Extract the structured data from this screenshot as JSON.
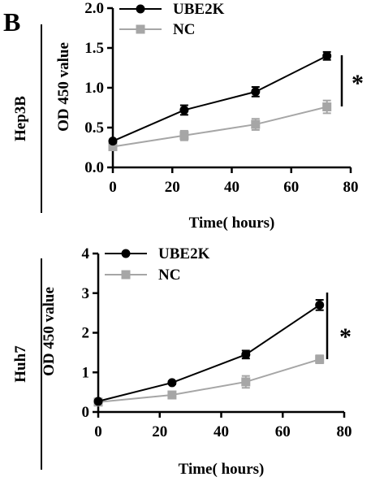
{
  "panel_label": "B",
  "chart_data": [
    {
      "type": "line",
      "row_label": "Hep3B",
      "xlabel": "Time( hours)",
      "ylabel": "OD 450 value",
      "xlim": [
        0,
        80
      ],
      "ylim": [
        0,
        2.0
      ],
      "xticks": [
        0,
        20,
        40,
        60,
        80
      ],
      "yticks": [
        0.0,
        0.5,
        1.0,
        1.5,
        2.0
      ],
      "ytick_labels": [
        "0.0",
        "0.5",
        "1.0",
        "1.5",
        "2.0"
      ],
      "x": [
        0,
        24,
        48,
        72
      ],
      "series": [
        {
          "name": "UBE2K",
          "color": "#000000",
          "marker": "circle",
          "values": [
            0.33,
            0.72,
            0.95,
            1.4
          ],
          "errors": [
            0.02,
            0.06,
            0.06,
            0.05
          ]
        },
        {
          "name": "NC",
          "color": "#a6a6a6",
          "marker": "square",
          "values": [
            0.26,
            0.4,
            0.54,
            0.76
          ],
          "errors": [
            0.02,
            0.06,
            0.07,
            0.08
          ]
        }
      ],
      "annotation": "*",
      "legend_position": "top-left",
      "grid": false
    },
    {
      "type": "line",
      "row_label": "Huh7",
      "xlabel": "Time( hours)",
      "ylabel": "OD 450 value",
      "xlim": [
        0,
        80
      ],
      "ylim": [
        0,
        4
      ],
      "xticks": [
        0,
        20,
        40,
        60,
        80
      ],
      "yticks": [
        0,
        1,
        2,
        3,
        4
      ],
      "ytick_labels": [
        "0",
        "1",
        "2",
        "3",
        "4"
      ],
      "x": [
        0,
        24,
        48,
        72
      ],
      "series": [
        {
          "name": "UBE2K",
          "color": "#000000",
          "marker": "circle",
          "values": [
            0.27,
            0.74,
            1.45,
            2.7
          ],
          "errors": [
            0.03,
            0.04,
            0.1,
            0.13
          ]
        },
        {
          "name": "NC",
          "color": "#a6a6a6",
          "marker": "square",
          "values": [
            0.25,
            0.43,
            0.76,
            1.33
          ],
          "errors": [
            0.02,
            0.04,
            0.15,
            0.1
          ]
        }
      ],
      "annotation": "*",
      "legend_position": "top-left",
      "grid": false
    }
  ]
}
